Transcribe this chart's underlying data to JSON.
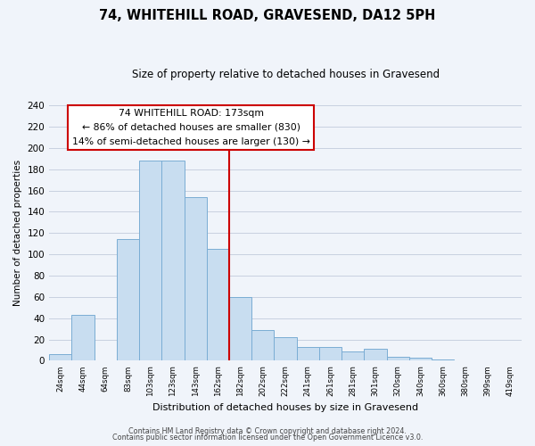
{
  "title": "74, WHITEHILL ROAD, GRAVESEND, DA12 5PH",
  "subtitle": "Size of property relative to detached houses in Gravesend",
  "xlabel": "Distribution of detached houses by size in Gravesend",
  "ylabel": "Number of detached properties",
  "bar_labels": [
    "24sqm",
    "44sqm",
    "64sqm",
    "83sqm",
    "103sqm",
    "123sqm",
    "143sqm",
    "162sqm",
    "182sqm",
    "202sqm",
    "222sqm",
    "241sqm",
    "261sqm",
    "281sqm",
    "301sqm",
    "320sqm",
    "340sqm",
    "360sqm",
    "380sqm",
    "399sqm",
    "419sqm"
  ],
  "bar_values": [
    6,
    43,
    0,
    114,
    188,
    188,
    154,
    105,
    60,
    29,
    22,
    13,
    13,
    9,
    11,
    4,
    3,
    1,
    0,
    0,
    0
  ],
  "bar_color": "#c8ddf0",
  "bar_edge_color": "#7aadd4",
  "vline_x_idx": 7.5,
  "vline_color": "#cc0000",
  "annotation_text": "74 WHITEHILL ROAD: 173sqm\n← 86% of detached houses are smaller (830)\n14% of semi-detached houses are larger (130) →",
  "annotation_box_color": "#ffffff",
  "annotation_box_edge": "#cc0000",
  "ylim": [
    0,
    240
  ],
  "yticks": [
    0,
    20,
    40,
    60,
    80,
    100,
    120,
    140,
    160,
    180,
    200,
    220,
    240
  ],
  "footer1": "Contains HM Land Registry data © Crown copyright and database right 2024.",
  "footer2": "Contains public sector information licensed under the Open Government Licence v3.0.",
  "bg_color": "#f0f4fa",
  "grid_color": "#c8d0e0",
  "title_fontsize": 10.5,
  "subtitle_fontsize": 8.5
}
